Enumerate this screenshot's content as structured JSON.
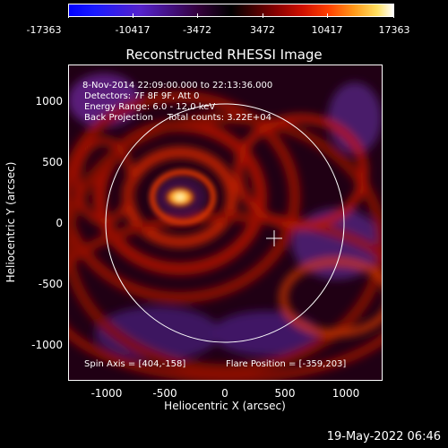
{
  "colorbar": {
    "labels": [
      "-17363",
      "-10417",
      "-3472",
      "3472",
      "10417",
      "17363"
    ]
  },
  "title": "Reconstructed RHESSI Image",
  "info": {
    "line1": "8-Nov-2014 22:09:00.000 to 22:13:36.000",
    "line2": "Detectors: 7F 8F 9F, Att 0",
    "line3": "Energy Range: 6.0 - 12.0 keV",
    "line4": "Back Projection     Total counts: 3.22E+04",
    "spin_axis": "Spin Axis = [404,-158]",
    "flare_position": "Flare Position = [-359,203]"
  },
  "axes": {
    "xlabel": "Heliocentric X (arcsec)",
    "ylabel": "Heliocentric Y (arcsec)",
    "xticks": [
      "-1000",
      "-500",
      "0",
      "500",
      "1000"
    ],
    "yticks": [
      "1000",
      "500",
      "0",
      "-500",
      "-1000"
    ]
  },
  "footer": {
    "timestamp": "19-May-2022 06:46"
  },
  "colors": {
    "background": "#000000",
    "foreground": "#ffffff"
  }
}
